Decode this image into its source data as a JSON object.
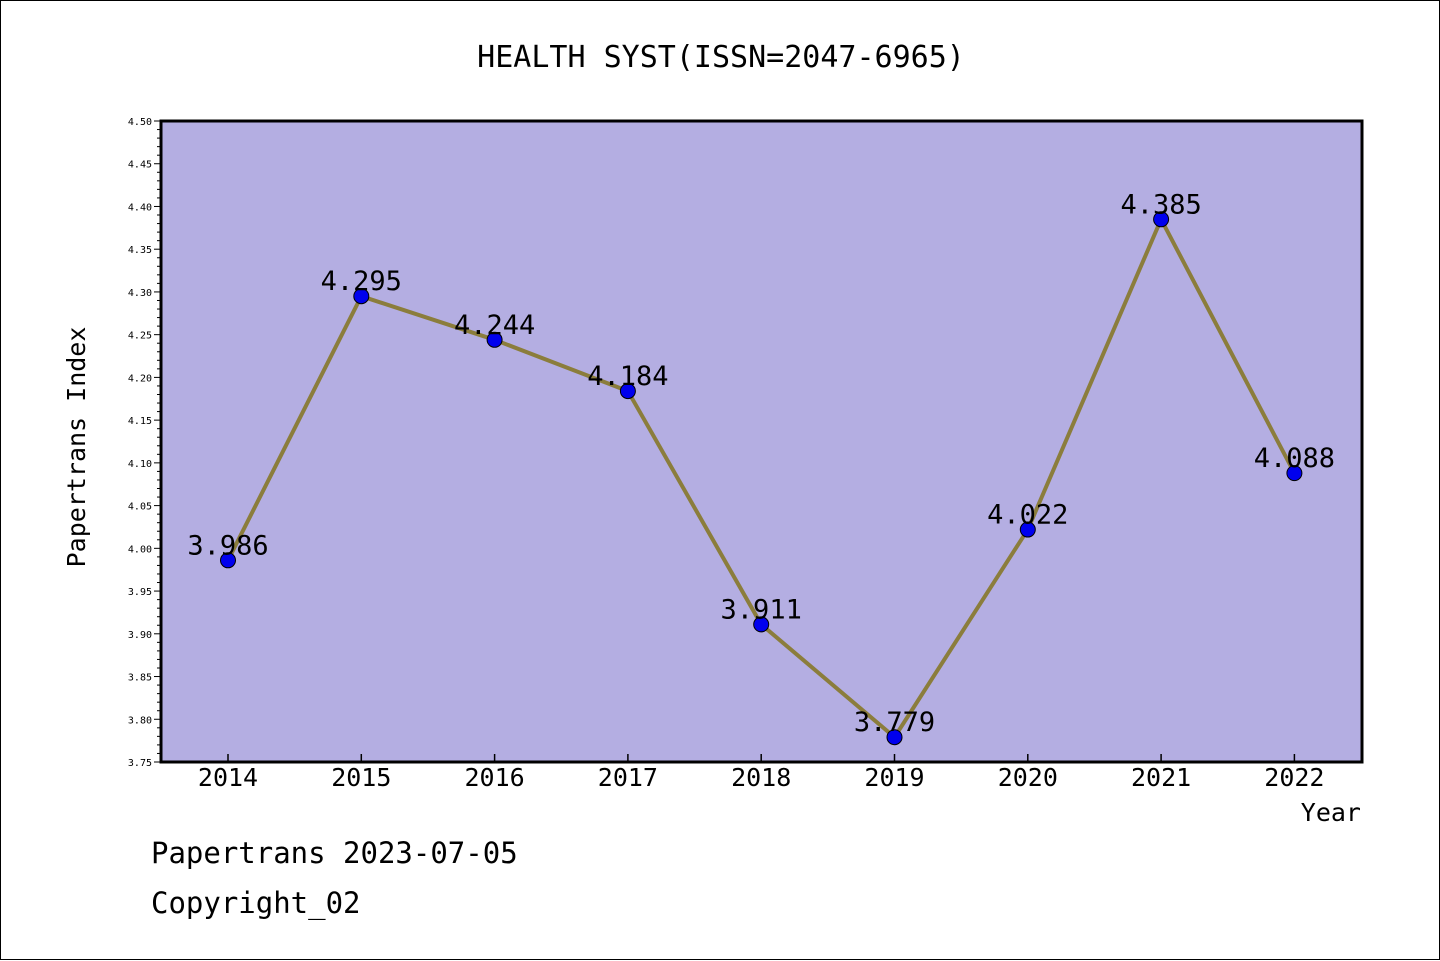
{
  "chart_data": {
    "type": "line",
    "title": "HEALTH SYST(ISSN=2047-6965)",
    "xlabel": "Year",
    "ylabel": "Papertrans Index",
    "categories": [
      "2014",
      "2015",
      "2016",
      "2017",
      "2018",
      "2019",
      "2020",
      "2021",
      "2022"
    ],
    "values": [
      3.986,
      4.295,
      4.244,
      4.184,
      3.911,
      3.779,
      4.022,
      4.385,
      4.088
    ],
    "data_labels": [
      "3.986",
      "4.295",
      "4.244",
      "4.184",
      "3.911",
      "3.779",
      "4.022",
      "4.385",
      "4.088"
    ],
    "ylim": [
      3.75,
      4.5
    ],
    "yticks": [
      "3.75",
      "3.80",
      "3.85",
      "3.90",
      "3.95",
      "4.00",
      "4.05",
      "4.10",
      "4.15",
      "4.20",
      "4.25",
      "4.30",
      "4.35",
      "4.40",
      "4.45",
      "4.50"
    ],
    "grid": false,
    "colors": {
      "plot_bg": "#b4aee2",
      "line": "#8b7d3c",
      "marker": "#0000ee"
    }
  },
  "footer": {
    "date_line": "Papertrans 2023-07-05",
    "copyright": "Copyright_02"
  }
}
